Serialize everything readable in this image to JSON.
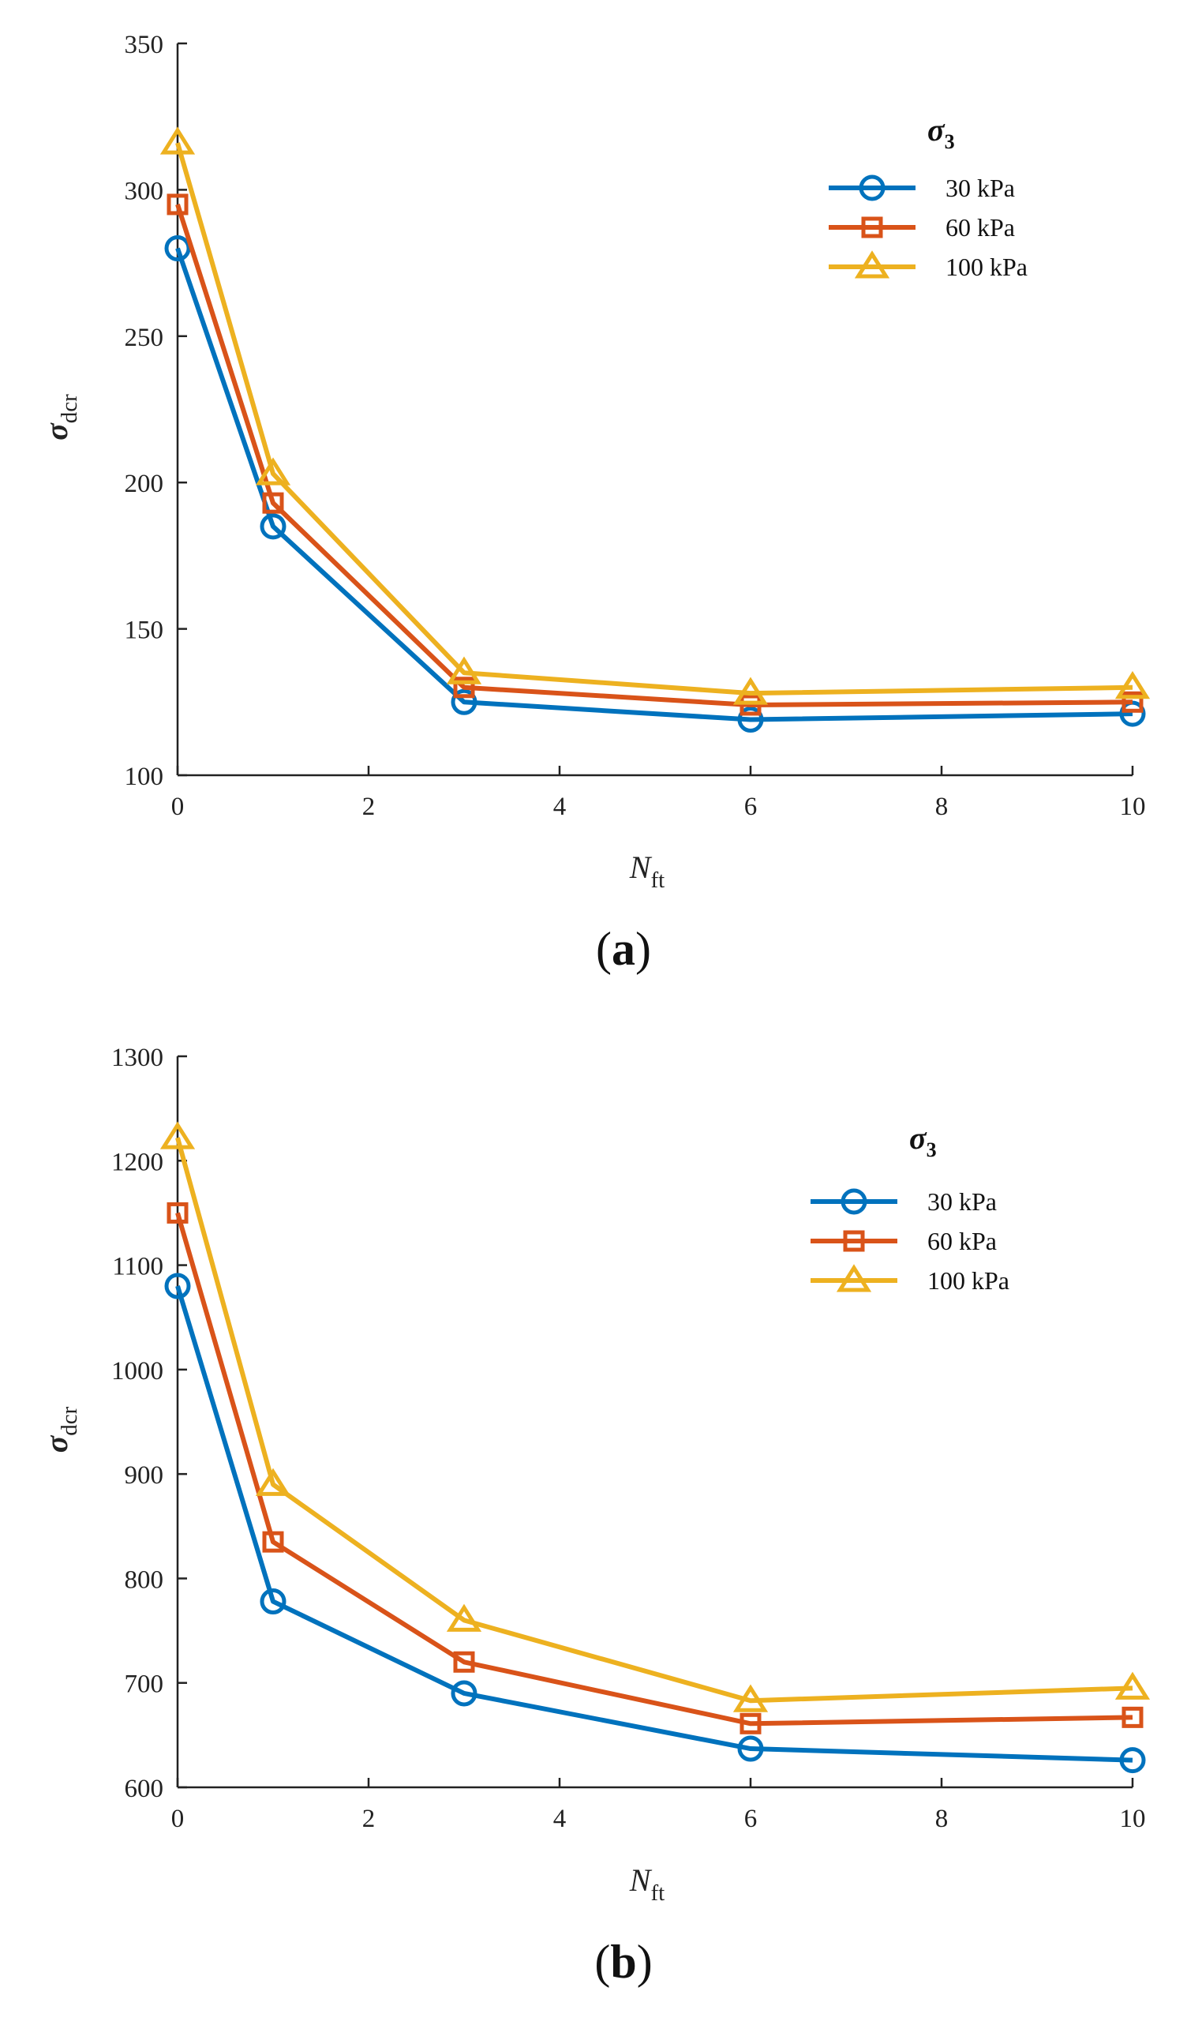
{
  "chart_data": [
    {
      "type": "line",
      "panel": "(a)",
      "panel_letter": "a",
      "xlabel": "N",
      "xlabel_sub": "ft",
      "ylabel": "σ",
      "ylabel_sub": "dcr",
      "x": [
        0,
        1,
        3,
        6,
        10
      ],
      "xlim": [
        0,
        10
      ],
      "xticks": [
        0,
        2,
        4,
        6,
        8,
        10
      ],
      "ylim": [
        100,
        350
      ],
      "yticks": [
        100,
        150,
        200,
        250,
        300,
        350
      ],
      "legend_title": "σ",
      "legend_title_sub": "3",
      "legend_position": "top-right",
      "series": [
        {
          "name": "30 kPa",
          "marker": "circle",
          "color": "#0072BD",
          "values": [
            280,
            185,
            125,
            119,
            121
          ]
        },
        {
          "name": "60 kPa",
          "marker": "square",
          "color": "#D95319",
          "values": [
            295,
            193,
            130,
            124,
            125
          ]
        },
        {
          "name": "100 kPa",
          "marker": "triangle",
          "color": "#EDB120",
          "values": [
            316,
            203,
            135,
            128,
            130
          ]
        }
      ]
    },
    {
      "type": "line",
      "panel": "(b)",
      "panel_letter": "b",
      "xlabel": "N",
      "xlabel_sub": "ft",
      "ylabel": "σ",
      "ylabel_sub": "dcr",
      "x": [
        0,
        1,
        3,
        6,
        10
      ],
      "xlim": [
        0,
        10
      ],
      "xticks": [
        0,
        2,
        4,
        6,
        8,
        10
      ],
      "ylim": [
        600,
        1300
      ],
      "yticks": [
        600,
        700,
        800,
        900,
        1000,
        1100,
        1200,
        1300
      ],
      "legend_title": "σ",
      "legend_title_sub": "3",
      "legend_position": "top-right",
      "series": [
        {
          "name": "30 kPa",
          "marker": "circle",
          "color": "#0072BD",
          "values": [
            1080,
            778,
            690,
            637,
            626
          ]
        },
        {
          "name": "60 kPa",
          "marker": "square",
          "color": "#D95319",
          "values": [
            1150,
            835,
            720,
            661,
            667
          ]
        },
        {
          "name": "100 kPa",
          "marker": "triangle",
          "color": "#EDB120",
          "values": [
            1222,
            890,
            760,
            683,
            695
          ]
        }
      ]
    }
  ]
}
